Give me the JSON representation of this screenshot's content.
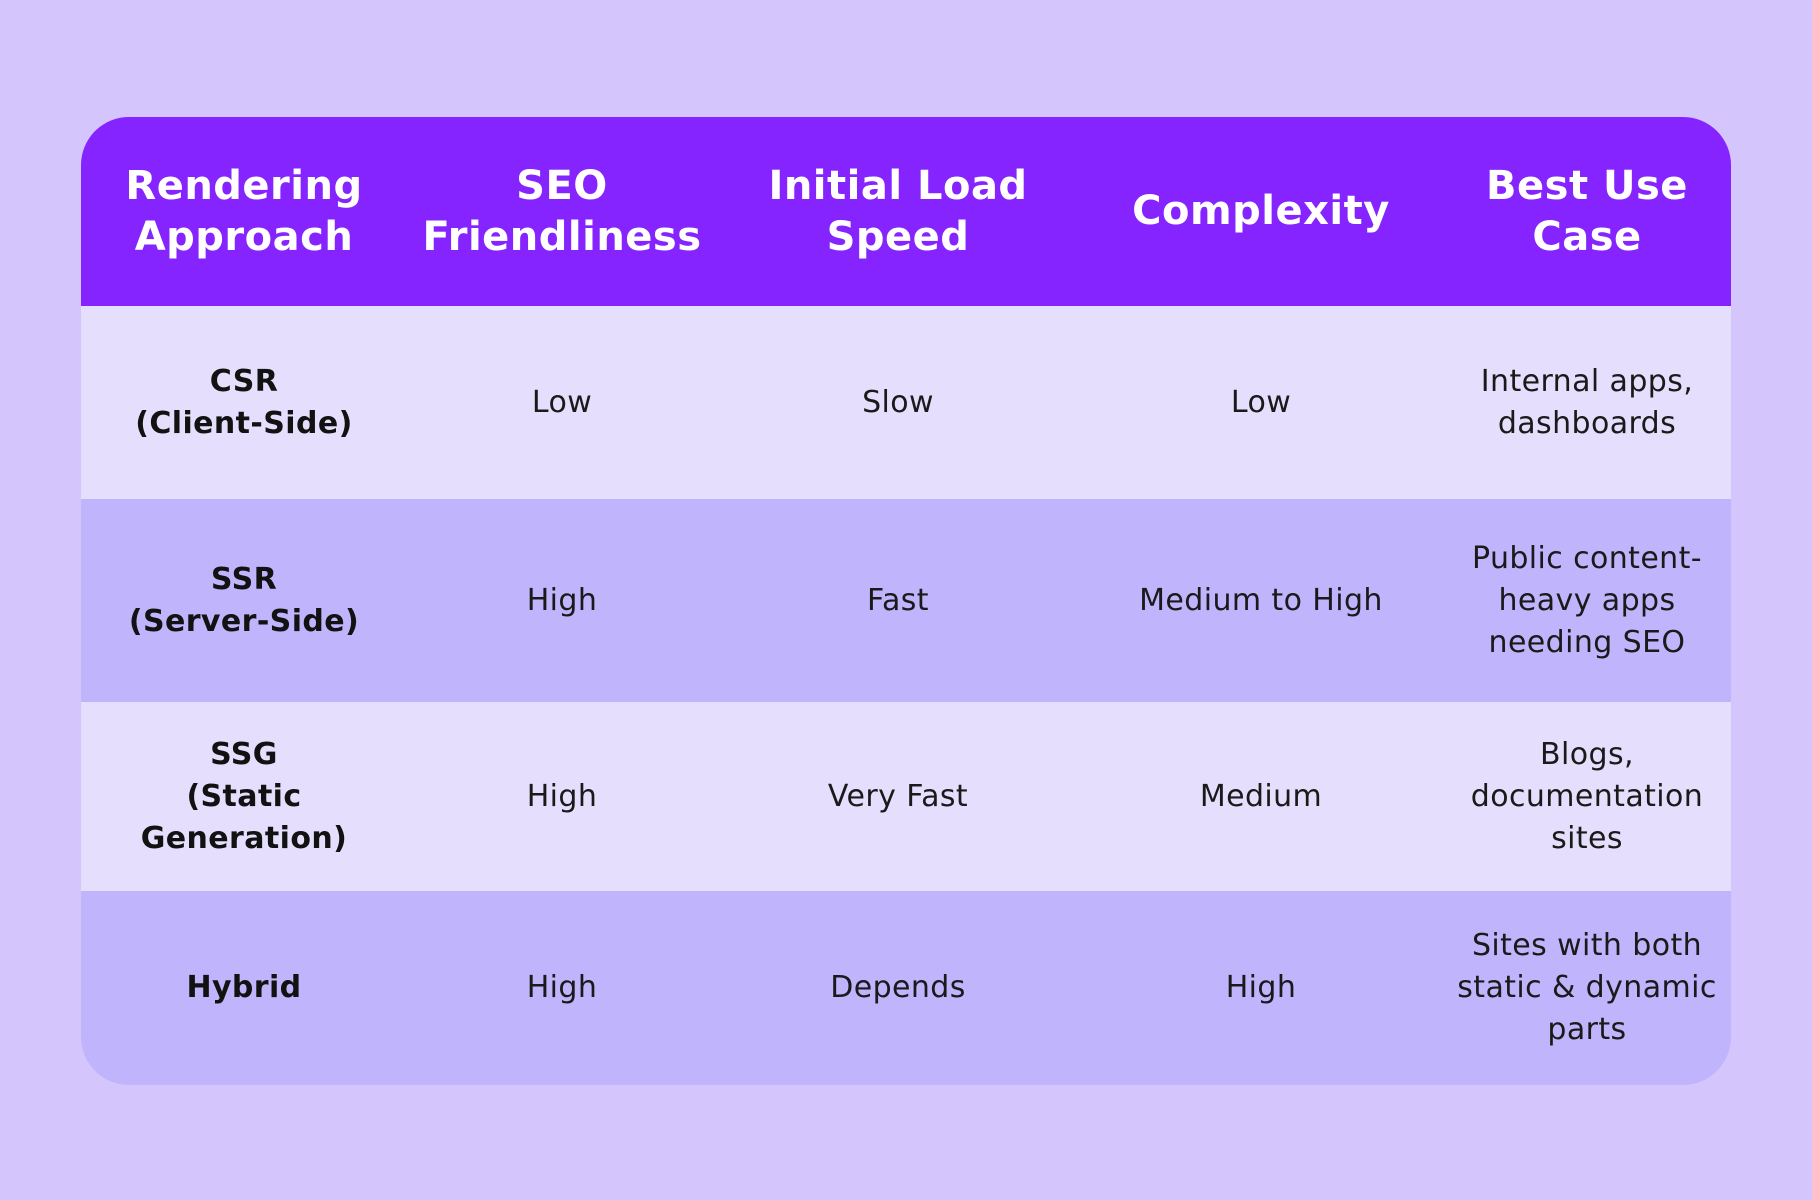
{
  "table": {
    "headers": [
      "Rendering\nApproach",
      "SEO\nFriendliness",
      "Initial Load\nSpeed",
      "Complexity",
      "Best Use\nCase"
    ],
    "rows": [
      [
        "CSR\n(Client-Side)",
        "Low",
        "Slow",
        "Low",
        "Internal apps,\ndashboards"
      ],
      [
        "SSR\n(Server-Side)",
        "High",
        "Fast",
        "Medium to High",
        "Public content-\nheavy apps\nneeding SEO"
      ],
      [
        "SSG\n(Static\nGeneration)",
        "High",
        "Very Fast",
        "Medium",
        "Blogs,\ndocumentation\nsites"
      ],
      [
        "Hybrid",
        "High",
        "Depends",
        "High",
        "Sites with both\nstatic & dynamic\nparts"
      ]
    ]
  },
  "colors": {
    "background": "#d4c6fd",
    "header": "#8524fe",
    "row_light": "#e5dffd",
    "row_dark": "#c0b4fc"
  }
}
